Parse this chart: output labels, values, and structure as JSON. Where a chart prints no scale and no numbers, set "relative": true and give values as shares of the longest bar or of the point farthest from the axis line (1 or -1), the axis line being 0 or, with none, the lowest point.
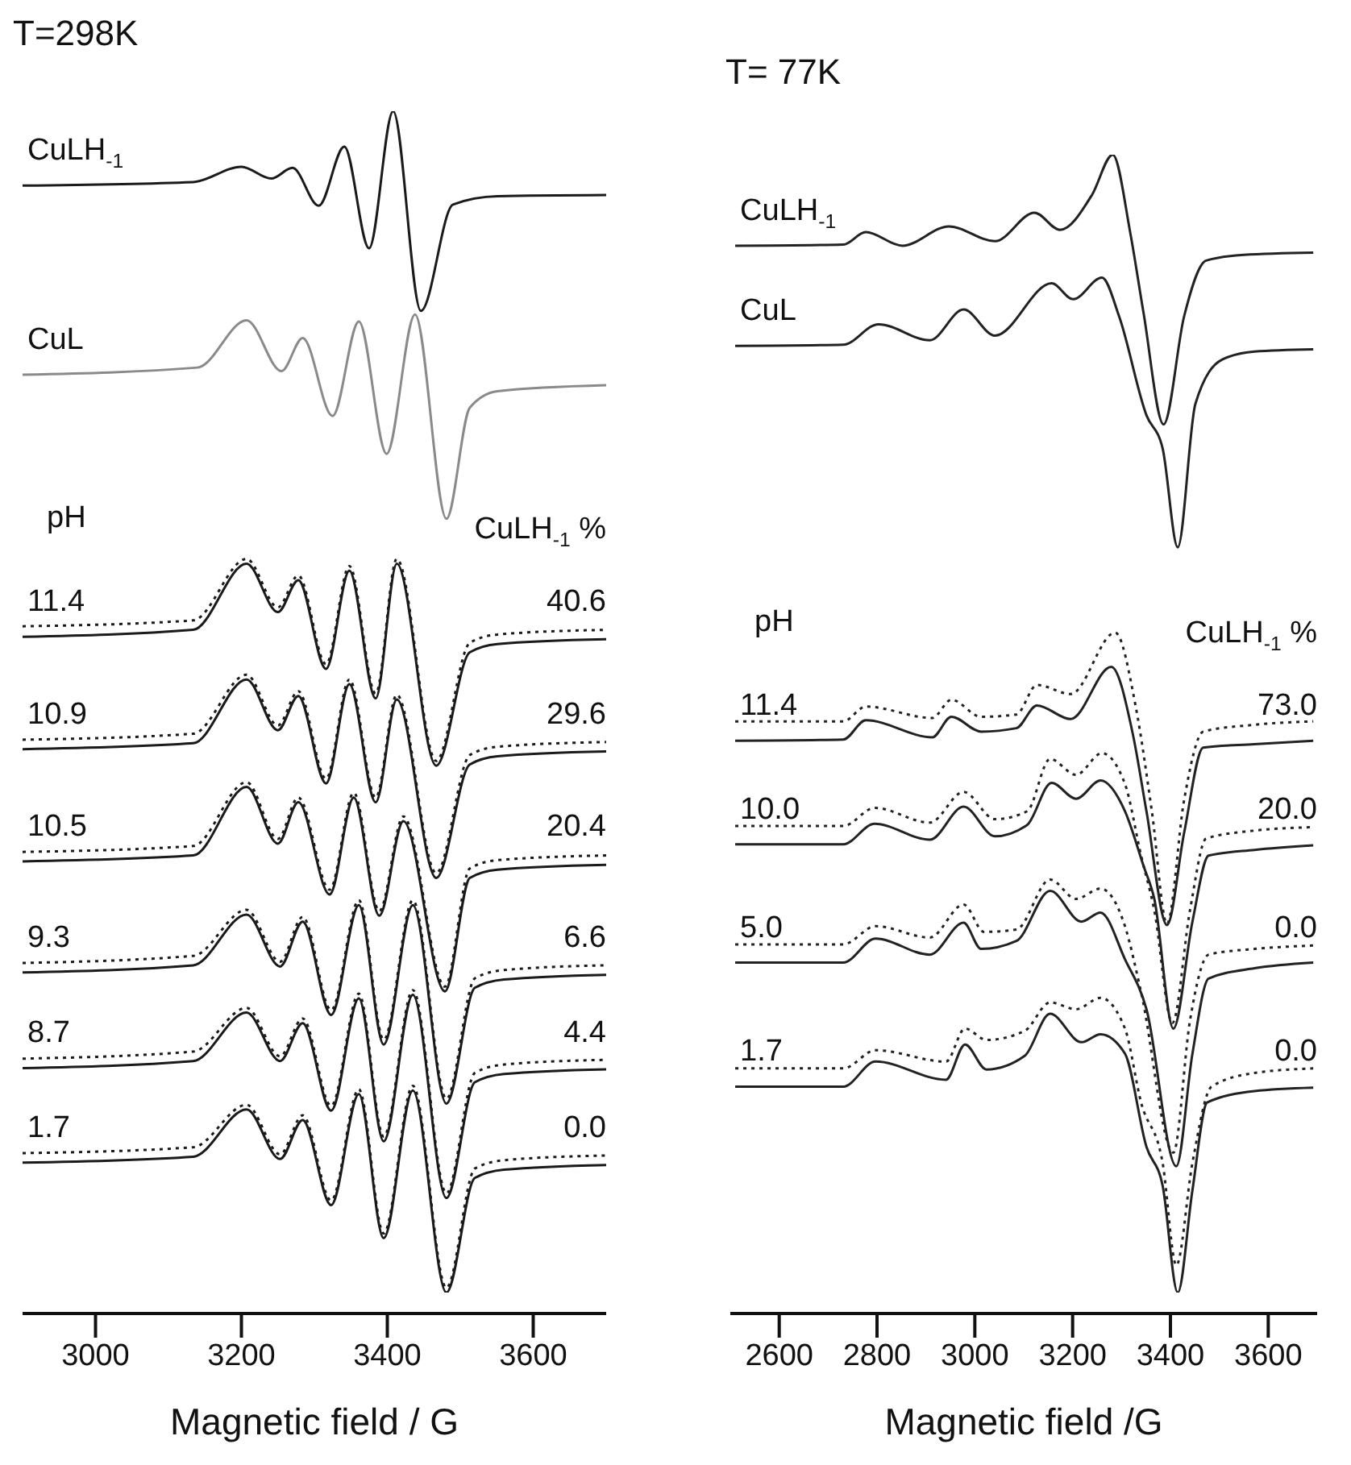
{
  "chart_data": [
    {
      "type": "line",
      "title": "T=298K",
      "xlabel": "Magnetic field / G",
      "relative": true,
      "marker": "none",
      "line_style": "solid",
      "xlim": [
        2900,
        3700
      ],
      "xticks": [
        3000,
        3200,
        3400,
        3600
      ],
      "series": [
        {
          "name": "CuLH$_{-1}$",
          "color": "#1a1a1a",
          "x": [
            2900,
            3134,
            3200,
            3241,
            3270,
            3306,
            3341,
            3375,
            3408,
            3446,
            3490,
            3551,
            3700
          ],
          "values": [
            0.937,
            0.94,
            0.953,
            0.943,
            0.952,
            0.92,
            0.97,
            0.884,
            1.0,
            0.831,
            0.921,
            0.928,
            0.929
          ]
        },
        {
          "name": "CuL",
          "color": "#8a8a8a",
          "x": [
            2900,
            3140,
            3207,
            3255,
            3284,
            3325,
            3361,
            3399,
            3438,
            3481,
            3513,
            3551,
            3700
          ],
          "values": [
            0.777,
            0.783,
            0.823,
            0.78,
            0.808,
            0.742,
            0.822,
            0.71,
            0.828,
            0.655,
            0.749,
            0.763,
            0.768
          ]
        },
        {
          "name": "11.4",
          "color": "#1a1a1a",
          "x": [
            2900,
            3134,
            3207,
            3250,
            3278,
            3316,
            3348,
            3384,
            3413,
            3467,
            3513,
            3551,
            3700
          ],
          "values": [
            0.555,
            0.561,
            0.617,
            0.576,
            0.603,
            0.528,
            0.611,
            0.503,
            0.617,
            0.446,
            0.542,
            0.549,
            0.553
          ]
        },
        {
          "color": "#1a1a1a",
          "line_style": "dotted",
          "x": [
            2900,
            3134,
            3207,
            3250,
            3278,
            3316,
            3348,
            3384,
            3413,
            3467,
            3513,
            3551,
            3700
          ],
          "values": [
            0.564,
            0.569,
            0.621,
            0.58,
            0.607,
            0.532,
            0.615,
            0.507,
            0.621,
            0.45,
            0.55,
            0.557,
            0.561
          ]
        },
        {
          "name": "10.9",
          "color": "#1a1a1a",
          "x": [
            2900,
            3134,
            3207,
            3250,
            3278,
            3316,
            3348,
            3384,
            3413,
            3467,
            3513,
            3551,
            3700
          ],
          "values": [
            0.46,
            0.465,
            0.519,
            0.476,
            0.505,
            0.431,
            0.515,
            0.415,
            0.502,
            0.351,
            0.447,
            0.454,
            0.458
          ]
        },
        {
          "color": "#1a1a1a",
          "line_style": "dotted",
          "x": [
            2900,
            3134,
            3207,
            3250,
            3278,
            3316,
            3348,
            3384,
            3413,
            3467,
            3513,
            3551,
            3700
          ],
          "values": [
            0.468,
            0.473,
            0.523,
            0.48,
            0.509,
            0.435,
            0.519,
            0.419,
            0.506,
            0.355,
            0.455,
            0.462,
            0.466
          ]
        },
        {
          "name": "10.5",
          "color": "#1a1a1a",
          "x": [
            2900,
            3134,
            3207,
            3250,
            3278,
            3321,
            3354,
            3389,
            3422,
            3479,
            3513,
            3551,
            3700
          ],
          "values": [
            0.365,
            0.37,
            0.428,
            0.38,
            0.415,
            0.337,
            0.419,
            0.319,
            0.399,
            0.255,
            0.351,
            0.358,
            0.362
          ]
        },
        {
          "color": "#1a1a1a",
          "line_style": "dotted",
          "x": [
            2900,
            3134,
            3207,
            3250,
            3278,
            3321,
            3354,
            3389,
            3422,
            3479,
            3513,
            3551,
            3700
          ],
          "values": [
            0.373,
            0.378,
            0.432,
            0.384,
            0.419,
            0.341,
            0.423,
            0.323,
            0.403,
            0.259,
            0.359,
            0.366,
            0.37
          ]
        },
        {
          "name": "9.3",
          "color": "#1a1a1a",
          "x": [
            2900,
            3134,
            3207,
            3253,
            3284,
            3323,
            3361,
            3395,
            3435,
            3481,
            3520,
            3560,
            3700
          ],
          "values": [
            0.271,
            0.277,
            0.32,
            0.276,
            0.314,
            0.235,
            0.328,
            0.21,
            0.328,
            0.16,
            0.258,
            0.265,
            0.269
          ]
        },
        {
          "color": "#1a1a1a",
          "line_style": "dotted",
          "x": [
            2900,
            3134,
            3207,
            3253,
            3284,
            3323,
            3361,
            3395,
            3435,
            3481,
            3520,
            3560,
            3700
          ],
          "values": [
            0.279,
            0.285,
            0.324,
            0.28,
            0.318,
            0.239,
            0.332,
            0.214,
            0.332,
            0.164,
            0.266,
            0.273,
            0.277
          ]
        },
        {
          "name": "8.7",
          "color": "#1a1a1a",
          "x": [
            2900,
            3134,
            3207,
            3253,
            3284,
            3323,
            3361,
            3395,
            3435,
            3481,
            3520,
            3560,
            3700
          ],
          "values": [
            0.19,
            0.196,
            0.237,
            0.196,
            0.228,
            0.154,
            0.249,
            0.128,
            0.252,
            0.08,
            0.178,
            0.185,
            0.189
          ]
        },
        {
          "color": "#1a1a1a",
          "line_style": "dotted",
          "x": [
            2900,
            3134,
            3207,
            3253,
            3284,
            3323,
            3361,
            3395,
            3435,
            3481,
            3520,
            3560,
            3700
          ],
          "values": [
            0.198,
            0.204,
            0.241,
            0.2,
            0.232,
            0.158,
            0.253,
            0.132,
            0.256,
            0.084,
            0.186,
            0.193,
            0.197
          ]
        },
        {
          "name": "1.7",
          "color": "#1a1a1a",
          "x": [
            2900,
            3134,
            3207,
            3253,
            3284,
            3323,
            3361,
            3395,
            3435,
            3481,
            3520,
            3560,
            3700
          ],
          "values": [
            0.11,
            0.115,
            0.155,
            0.113,
            0.146,
            0.074,
            0.168,
            0.046,
            0.171,
            0,
            0.097,
            0.104,
            0.108
          ]
        },
        {
          "color": "#1a1a1a",
          "line_style": "dotted",
          "x": [
            2900,
            3134,
            3207,
            3253,
            3284,
            3323,
            3361,
            3395,
            3435,
            3481,
            3520,
            3560,
            3700
          ],
          "values": [
            0.118,
            0.123,
            0.159,
            0.117,
            0.15,
            0.078,
            0.172,
            0.05,
            0.175,
            0.004,
            0.105,
            0.112,
            0.116
          ]
        }
      ],
      "annotations": [
        "pH",
        "CuLH$_{-1}$ %",
        "40.6",
        "29.6",
        "20.4",
        "6.6",
        "4.4",
        "0.0"
      ]
    },
    {
      "type": "line",
      "title": "T= 77K",
      "xlabel": "Magnetic field /G",
      "relative": true,
      "marker": "none",
      "line_style": "solid",
      "xlim": [
        2500,
        3700
      ],
      "xticks": [
        2600,
        2800,
        3000,
        3200,
        3400,
        3600
      ],
      "series": [
        {
          "name": "CuLH$_{-1}$",
          "color": "#222222",
          "x": [
            2510,
            2731,
            2777,
            2852,
            2947,
            3041,
            3122,
            3174,
            3240,
            3282,
            3318,
            3345,
            3386,
            3428,
            3473,
            3550,
            3692
          ],
          "values": [
            0.92,
            0.921,
            0.932,
            0.92,
            0.937,
            0.924,
            0.949,
            0.934,
            0.965,
            1.0,
            0.931,
            0.861,
            0.763,
            0.858,
            0.907,
            0.912,
            0.914
          ]
        },
        {
          "name": "CuL",
          "color": "#222222",
          "x": [
            2510,
            2731,
            2803,
            2908,
            2977,
            3041,
            3157,
            3201,
            3260,
            3295,
            3351,
            3384,
            3415,
            3451,
            3506,
            3572,
            3692
          ],
          "values": [
            0.832,
            0.833,
            0.851,
            0.837,
            0.864,
            0.841,
            0.887,
            0.873,
            0.892,
            0.858,
            0.771,
            0.742,
            0.655,
            0.781,
            0.82,
            0.827,
            0.829
          ]
        },
        {
          "name": "11.4",
          "color": "#222222",
          "x": [
            2510,
            2731,
            2777,
            2913,
            2952,
            3013,
            3085,
            3127,
            3196,
            3279,
            3323,
            3351,
            3393,
            3428,
            3467,
            3572,
            3692
          ],
          "values": [
            0.485,
            0.486,
            0.503,
            0.488,
            0.506,
            0.493,
            0.496,
            0.516,
            0.504,
            0.55,
            0.491,
            0.423,
            0.323,
            0.404,
            0.479,
            0.482,
            0.485
          ]
        },
        {
          "color": "#222222",
          "line_style": "dotted",
          "x": [
            2510,
            2731,
            2777,
            2913,
            2952,
            3013,
            3085,
            3127,
            3196,
            3287,
            3329,
            3362,
            3393,
            3428,
            3467,
            3572,
            3692
          ],
          "values": [
            0.502,
            0.502,
            0.515,
            0.505,
            0.521,
            0.506,
            0.508,
            0.534,
            0.526,
            0.58,
            0.515,
            0.423,
            0.324,
            0.433,
            0.493,
            0.499,
            0.502
          ]
        },
        {
          "name": "10.0",
          "color": "#222222",
          "x": [
            2510,
            2731,
            2795,
            2908,
            2977,
            3041,
            3107,
            3157,
            3207,
            3257,
            3307,
            3345,
            3367,
            3406,
            3445,
            3478,
            3572,
            3692
          ],
          "values": [
            0.394,
            0.394,
            0.412,
            0.398,
            0.427,
            0.401,
            0.411,
            0.448,
            0.434,
            0.45,
            0.423,
            0.375,
            0.346,
            0.232,
            0.326,
            0.384,
            0.389,
            0.393
          ]
        },
        {
          "color": "#222222",
          "line_style": "dotted",
          "x": [
            2510,
            2731,
            2795,
            2908,
            2977,
            3041,
            3107,
            3154,
            3207,
            3260,
            3307,
            3340,
            3367,
            3404,
            3440,
            3473,
            3572,
            3692
          ],
          "values": [
            0.41,
            0.41,
            0.426,
            0.413,
            0.44,
            0.416,
            0.423,
            0.469,
            0.455,
            0.474,
            0.447,
            0.384,
            0.336,
            0.237,
            0.336,
            0.399,
            0.406,
            0.409
          ]
        },
        {
          "name": "5.0",
          "color": "#222222",
          "x": [
            2510,
            2731,
            2797,
            2908,
            2977,
            3013,
            3085,
            3154,
            3218,
            3257,
            3307,
            3351,
            3412,
            3445,
            3478,
            3572,
            3692
          ],
          "values": [
            0.29,
            0.29,
            0.311,
            0.297,
            0.325,
            0.302,
            0.309,
            0.353,
            0.326,
            0.334,
            0.293,
            0.249,
            0.111,
            0.21,
            0.276,
            0.285,
            0.29
          ]
        },
        {
          "color": "#222222",
          "line_style": "dotted",
          "x": [
            2510,
            2731,
            2797,
            2908,
            2977,
            3019,
            3085,
            3154,
            3207,
            3257,
            3307,
            3340,
            3406,
            3440,
            3478,
            3572,
            3692
          ],
          "values": [
            0.306,
            0.306,
            0.322,
            0.312,
            0.341,
            0.317,
            0.319,
            0.363,
            0.346,
            0.355,
            0.322,
            0.264,
            0.123,
            0.239,
            0.297,
            0.302,
            0.305
          ]
        },
        {
          "name": "1.7",
          "color": "#222222",
          "x": [
            2510,
            2731,
            2797,
            2941,
            2980,
            3024,
            3102,
            3154,
            3218,
            3257,
            3307,
            3351,
            3384,
            3415,
            3445,
            3475,
            3572,
            3692
          ],
          "values": [
            0.181,
            0.181,
            0.203,
            0.187,
            0.218,
            0.196,
            0.208,
            0.245,
            0.22,
            0.227,
            0.21,
            0.128,
            0.094,
            0,
            0.09,
            0.167,
            0.177,
            0.18
          ]
        },
        {
          "color": "#222222",
          "line_style": "dotted",
          "x": [
            2510,
            2731,
            2797,
            2941,
            2980,
            3024,
            3102,
            3154,
            3207,
            3257,
            3307,
            3340,
            3384,
            3412,
            3445,
            3484,
            3572,
            3692
          ],
          "values": [
            0.197,
            0.197,
            0.213,
            0.203,
            0.232,
            0.222,
            0.23,
            0.255,
            0.249,
            0.259,
            0.232,
            0.167,
            0.114,
            0.024,
            0.114,
            0.181,
            0.193,
            0.197
          ]
        }
      ],
      "annotations": [
        "pH",
        "CuLH$_{-1}$ %",
        "73.0",
        "20.0",
        "0.0",
        "0.0"
      ]
    }
  ]
}
